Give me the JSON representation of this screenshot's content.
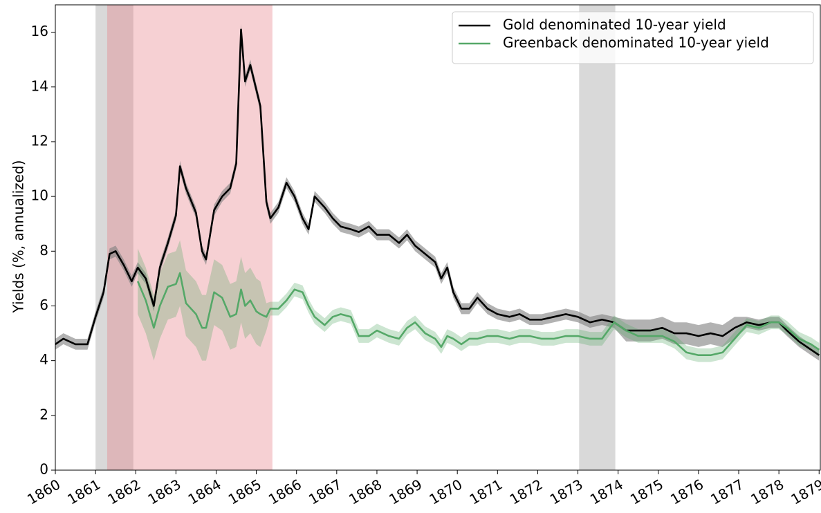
{
  "chart_data": {
    "type": "line",
    "ylabel": "Yields (%, annualized)",
    "x": [
      1860.0,
      1860.2,
      1860.5,
      1860.8,
      1861.0,
      1861.2,
      1861.35,
      1861.5,
      1861.7,
      1861.9,
      1862.05,
      1862.25,
      1862.45,
      1862.6,
      1862.8,
      1863.0,
      1863.1,
      1863.25,
      1863.5,
      1863.65,
      1863.75,
      1863.95,
      1864.15,
      1864.35,
      1864.5,
      1864.62,
      1864.72,
      1864.85,
      1865.0,
      1865.1,
      1865.25,
      1865.35,
      1865.55,
      1865.75,
      1865.95,
      1866.15,
      1866.3,
      1866.45,
      1866.7,
      1866.9,
      1867.1,
      1867.35,
      1867.55,
      1867.8,
      1868.0,
      1868.3,
      1868.55,
      1868.75,
      1868.95,
      1869.2,
      1869.45,
      1869.6,
      1869.75,
      1869.9,
      1870.1,
      1870.3,
      1870.5,
      1870.75,
      1871.0,
      1871.3,
      1871.55,
      1871.8,
      1872.1,
      1872.4,
      1872.7,
      1873.0,
      1873.3,
      1873.6,
      1873.9,
      1874.2,
      1874.5,
      1874.8,
      1875.1,
      1875.4,
      1875.7,
      1876.0,
      1876.3,
      1876.6,
      1876.9,
      1877.2,
      1877.5,
      1877.8,
      1878.0,
      1878.2,
      1878.5,
      1878.8,
      1879.0
    ],
    "series": [
      {
        "name": "Gold denominated 10-year yield",
        "color": "#000000",
        "band_color": "#7f7f7f",
        "band_opacity": 0.6,
        "values": [
          4.6,
          4.8,
          4.6,
          4.6,
          5.6,
          6.5,
          7.9,
          8.0,
          7.5,
          6.9,
          7.4,
          7.0,
          6.0,
          7.4,
          8.3,
          9.3,
          11.1,
          10.3,
          9.4,
          8.0,
          7.7,
          9.5,
          10.0,
          10.3,
          11.2,
          16.1,
          14.2,
          14.8,
          13.9,
          13.3,
          9.8,
          9.2,
          9.6,
          10.5,
          10.0,
          9.2,
          8.8,
          10.0,
          9.6,
          9.2,
          8.9,
          8.8,
          8.7,
          8.9,
          8.6,
          8.6,
          8.3,
          8.6,
          8.2,
          7.9,
          7.6,
          7.0,
          7.4,
          6.5,
          5.9,
          5.9,
          6.3,
          5.9,
          5.7,
          5.6,
          5.7,
          5.5,
          5.5,
          5.6,
          5.7,
          5.6,
          5.4,
          5.5,
          5.4,
          5.1,
          5.1,
          5.1,
          5.2,
          5.0,
          5.0,
          4.9,
          5.0,
          4.9,
          5.2,
          5.4,
          5.3,
          5.4,
          5.4,
          5.1,
          4.7,
          4.4,
          4.2
        ],
        "lower": [
          4.4,
          4.6,
          4.4,
          4.4,
          5.4,
          6.3,
          7.7,
          7.8,
          7.3,
          6.7,
          7.2,
          6.8,
          5.8,
          7.2,
          8.1,
          9.1,
          10.9,
          10.1,
          9.2,
          7.8,
          7.5,
          9.3,
          9.8,
          10.1,
          11.0,
          15.9,
          14.0,
          14.6,
          13.7,
          13.1,
          9.6,
          9.0,
          9.4,
          10.3,
          9.8,
          9.0,
          8.6,
          9.8,
          9.4,
          9.0,
          8.7,
          8.6,
          8.5,
          8.7,
          8.4,
          8.4,
          8.1,
          8.4,
          8.0,
          7.7,
          7.4,
          6.8,
          7.2,
          6.3,
          5.7,
          5.7,
          6.1,
          5.7,
          5.5,
          5.4,
          5.5,
          5.3,
          5.3,
          5.4,
          5.5,
          5.4,
          5.2,
          5.3,
          5.2,
          4.7,
          4.7,
          4.7,
          4.8,
          4.6,
          4.6,
          4.5,
          4.6,
          4.5,
          4.8,
          5.2,
          5.1,
          5.2,
          5.2,
          4.9,
          4.5,
          4.2,
          4.0
        ],
        "upper": [
          4.8,
          5.0,
          4.8,
          4.8,
          5.8,
          6.7,
          8.1,
          8.2,
          7.7,
          7.1,
          7.6,
          7.2,
          6.2,
          7.6,
          8.5,
          9.5,
          11.3,
          10.5,
          9.6,
          8.2,
          7.9,
          9.7,
          10.2,
          10.5,
          11.4,
          16.3,
          14.4,
          15.0,
          14.1,
          13.5,
          10.0,
          9.4,
          9.8,
          10.7,
          10.2,
          9.4,
          9.0,
          10.2,
          9.8,
          9.4,
          9.1,
          9.0,
          8.9,
          9.1,
          8.8,
          8.8,
          8.5,
          8.8,
          8.4,
          8.1,
          7.8,
          7.2,
          7.6,
          6.7,
          6.1,
          6.1,
          6.5,
          6.1,
          5.9,
          5.8,
          5.9,
          5.7,
          5.7,
          5.8,
          5.9,
          5.8,
          5.6,
          5.7,
          5.6,
          5.5,
          5.5,
          5.5,
          5.6,
          5.4,
          5.4,
          5.3,
          5.4,
          5.3,
          5.6,
          5.6,
          5.5,
          5.6,
          5.6,
          5.3,
          4.9,
          4.6,
          4.4
        ]
      },
      {
        "name": "Greenback denominated 10-year yield",
        "color": "#55a868",
        "band_color": "#55a868",
        "band_opacity": 0.3,
        "values": [
          null,
          null,
          null,
          null,
          null,
          null,
          null,
          null,
          null,
          null,
          6.9,
          6.2,
          5.2,
          6.0,
          6.7,
          6.8,
          7.2,
          6.1,
          5.7,
          5.2,
          5.2,
          6.5,
          6.3,
          5.6,
          5.7,
          6.6,
          6.0,
          6.2,
          5.8,
          5.7,
          5.6,
          5.9,
          5.9,
          6.2,
          6.6,
          6.5,
          6.0,
          5.6,
          5.3,
          5.6,
          5.7,
          5.6,
          4.9,
          4.9,
          5.1,
          4.9,
          4.8,
          5.2,
          5.4,
          5.0,
          4.8,
          4.5,
          4.9,
          4.8,
          4.6,
          4.8,
          4.8,
          4.9,
          4.9,
          4.8,
          4.9,
          4.9,
          4.8,
          4.8,
          4.9,
          4.9,
          4.8,
          4.8,
          5.4,
          5.1,
          4.9,
          4.9,
          4.9,
          4.7,
          4.3,
          4.2,
          4.2,
          4.3,
          4.8,
          5.3,
          5.2,
          5.4,
          5.4,
          5.2,
          4.8,
          4.6,
          4.4
        ],
        "lower": [
          null,
          null,
          null,
          null,
          null,
          null,
          null,
          null,
          null,
          null,
          5.7,
          5.0,
          4.0,
          4.8,
          5.5,
          5.6,
          6.0,
          4.9,
          4.5,
          4.0,
          4.0,
          5.3,
          5.1,
          4.4,
          4.5,
          5.4,
          4.8,
          5.0,
          4.6,
          4.5,
          5.1,
          5.65,
          5.65,
          5.95,
          6.35,
          6.25,
          5.75,
          5.35,
          5.05,
          5.35,
          5.45,
          5.35,
          4.65,
          4.65,
          4.85,
          4.65,
          4.55,
          4.95,
          5.15,
          4.75,
          4.55,
          4.25,
          4.65,
          4.55,
          4.35,
          4.55,
          4.55,
          4.65,
          4.65,
          4.55,
          4.65,
          4.65,
          4.55,
          4.55,
          4.65,
          4.65,
          4.55,
          4.55,
          5.15,
          4.85,
          4.65,
          4.65,
          4.65,
          4.45,
          4.05,
          3.95,
          3.95,
          4.05,
          4.55,
          5.05,
          4.95,
          5.15,
          5.15,
          4.95,
          4.55,
          4.35,
          4.15
        ],
        "upper": [
          null,
          null,
          null,
          null,
          null,
          null,
          null,
          null,
          null,
          null,
          8.1,
          7.4,
          6.4,
          7.2,
          7.9,
          8.0,
          8.4,
          7.3,
          6.9,
          6.4,
          6.4,
          7.7,
          7.5,
          6.8,
          6.9,
          7.8,
          7.2,
          7.4,
          7.0,
          6.9,
          6.1,
          6.15,
          6.15,
          6.45,
          6.85,
          6.75,
          6.25,
          5.85,
          5.55,
          5.85,
          5.95,
          5.85,
          5.15,
          5.15,
          5.35,
          5.15,
          5.05,
          5.45,
          5.65,
          5.25,
          5.05,
          4.75,
          5.15,
          5.05,
          4.85,
          5.05,
          5.05,
          5.15,
          5.15,
          5.05,
          5.15,
          5.15,
          5.05,
          5.05,
          5.15,
          5.15,
          5.05,
          5.05,
          5.65,
          5.35,
          5.15,
          5.15,
          5.15,
          4.95,
          4.55,
          4.45,
          4.45,
          4.55,
          5.05,
          5.55,
          5.45,
          5.65,
          5.65,
          5.45,
          5.05,
          4.85,
          4.65
        ]
      }
    ],
    "shaded_regions": [
      {
        "start": 1861.0,
        "end": 1861.94,
        "color": "#d9d9d9",
        "opacity": 1
      },
      {
        "start": 1873.03,
        "end": 1873.93,
        "color": "#d9d9d9",
        "opacity": 1
      },
      {
        "start": 1861.29,
        "end": 1865.4,
        "color": "#e67882",
        "opacity": 0.35
      }
    ],
    "xlim": [
      1860,
      1879.03
    ],
    "xticks": [
      1860,
      1861,
      1862,
      1863,
      1864,
      1865,
      1866,
      1867,
      1868,
      1869,
      1870,
      1871,
      1872,
      1873,
      1874,
      1875,
      1876,
      1877,
      1878,
      1879
    ],
    "ylim": [
      0,
      17
    ],
    "yticks": [
      0,
      2,
      4,
      6,
      8,
      10,
      12,
      14,
      16
    ],
    "legend": "upper right"
  }
}
